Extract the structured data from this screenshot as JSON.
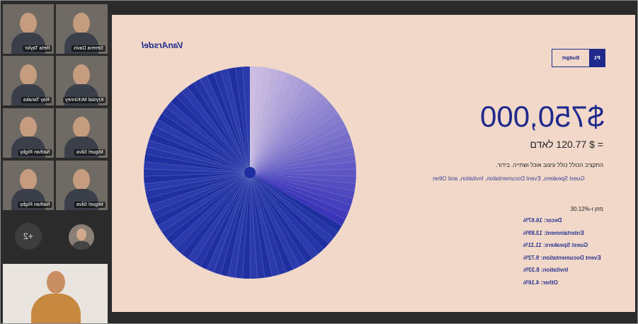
{
  "participants": [
    "Reta Taylor",
    "Serena Davis",
    "Ray Tanaka",
    "Krystal McKinney",
    "Nathan Rigby",
    "Miguel Silva",
    "Nathan Rigby",
    "Miguel Silva"
  ],
  "overflow": "+2",
  "slide": {
    "logo": "VanArsdel",
    "page": "P1",
    "section": "Budget",
    "amount": "$750,000",
    "per_person": "= $ 120.77 לאדם",
    "description_he": "התקציב הכולל כולל עיצוב אוכל ושתייה. בידור.",
    "description_en": "Guest Speakers, Event Documentation, Invitation, and Other.",
    "breakdown_title": "מזון ו-30.12%",
    "items": [
      "Decor: 16.67%",
      "Entertainment: 13.89%",
      "Guest Speakers: 11.11%",
      "Event Documentation: 9.72%",
      "Invitation: 8.33%",
      "Other: 4.16%"
    ]
  }
}
